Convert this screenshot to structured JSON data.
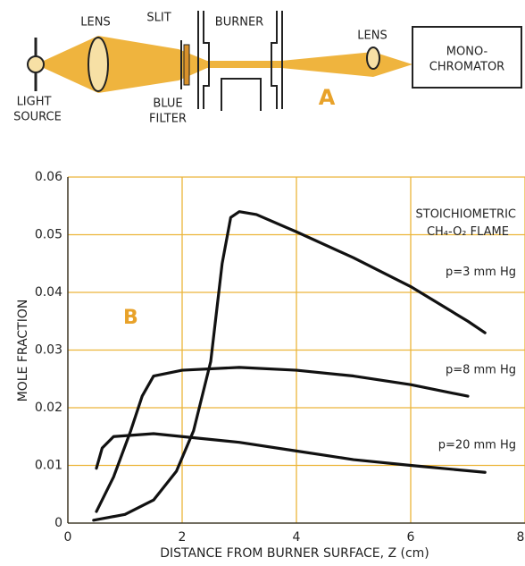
{
  "diagram": {
    "lens_1": "LENS",
    "slit": "SLIT",
    "burner": "BURNER",
    "lens_2": "LENS",
    "monochromator": [
      "MONO-",
      "CHROMATOR"
    ],
    "light_source": [
      "LIGHT",
      "SOURCE"
    ],
    "blue_filter": [
      "BLUE",
      "FILTER"
    ],
    "panel": "A"
  },
  "chart_data": {
    "type": "line",
    "xlabel": "DISTANCE FROM BURNER SURFACE, Z (cm)",
    "ylabel": "MOLE FRACTION",
    "xlim": [
      0,
      8
    ],
    "ylim": [
      0,
      0.06
    ],
    "xticks": [
      0,
      2,
      4,
      6,
      8
    ],
    "yticks": [
      0,
      0.01,
      0.02,
      0.03,
      0.04,
      0.05,
      0.06
    ],
    "grid": true,
    "grid_color": "#ecb53a",
    "annotations": [
      "STOICHIOMETRIC",
      "CH₄-O₂ FLAME",
      "B"
    ],
    "series": [
      {
        "name": "p=3 mm Hg",
        "color": "#111111",
        "x": [
          0.45,
          1.0,
          1.5,
          1.9,
          2.2,
          2.5,
          2.7,
          2.85,
          3.0,
          3.3,
          4.0,
          5.0,
          6.0,
          7.0,
          7.3
        ],
        "values": [
          0.0005,
          0.0015,
          0.004,
          0.009,
          0.016,
          0.028,
          0.045,
          0.053,
          0.054,
          0.0535,
          0.0505,
          0.046,
          0.041,
          0.035,
          0.033
        ]
      },
      {
        "name": "p=8 mm Hg",
        "color": "#111111",
        "x": [
          0.5,
          0.8,
          1.1,
          1.3,
          1.5,
          2.0,
          3.0,
          4.0,
          5.0,
          6.0,
          7.0
        ],
        "values": [
          0.002,
          0.008,
          0.016,
          0.022,
          0.0255,
          0.0265,
          0.027,
          0.0265,
          0.0255,
          0.024,
          0.022
        ]
      },
      {
        "name": "p=20 mm Hg",
        "color": "#111111",
        "x": [
          0.5,
          0.6,
          0.8,
          1.5,
          2.0,
          3.0,
          4.0,
          5.0,
          6.0,
          7.3
        ],
        "values": [
          0.0095,
          0.013,
          0.015,
          0.0155,
          0.015,
          0.014,
          0.0125,
          0.011,
          0.01,
          0.0088
        ]
      }
    ]
  }
}
